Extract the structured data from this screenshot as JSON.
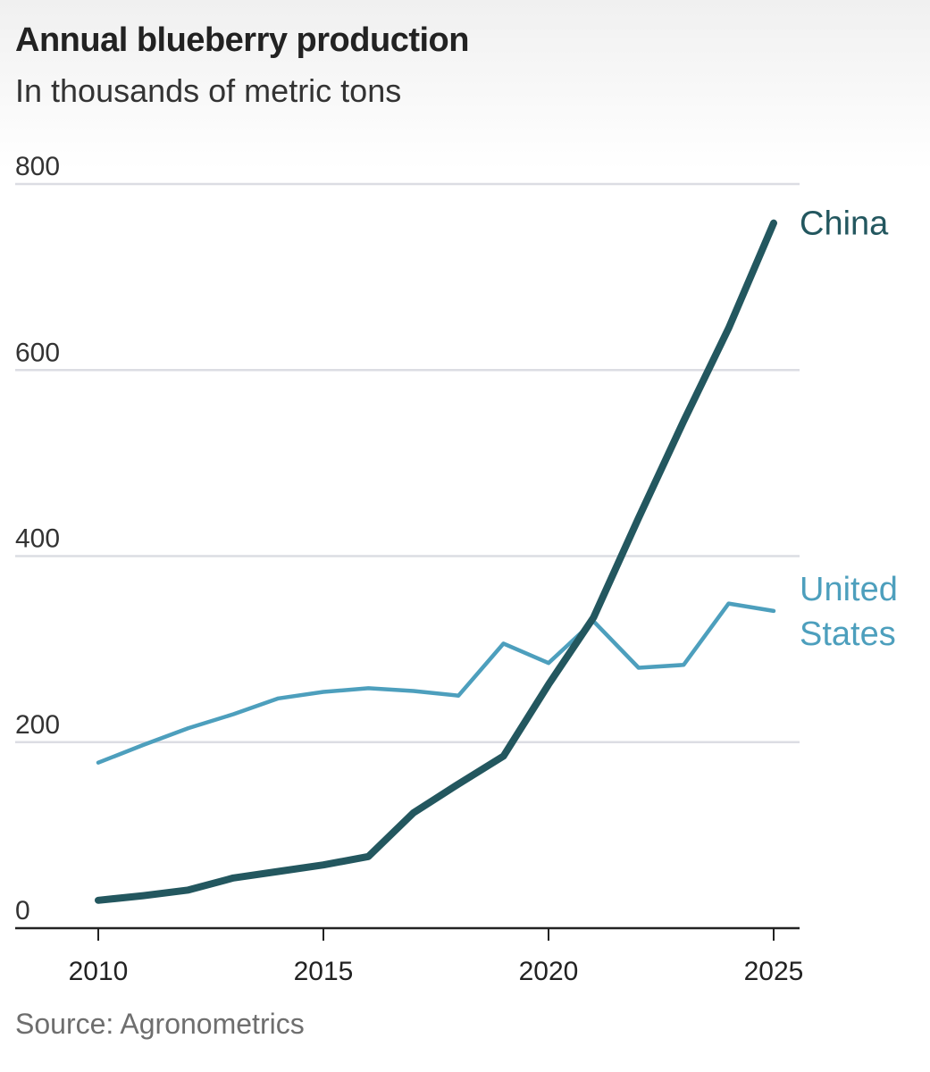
{
  "title": "Annual blueberry production",
  "subtitle": "In thousands of metric tons",
  "source": "Source: Agronometrics",
  "colors": {
    "china": "#23575f",
    "united_states": "#4d9fbd",
    "grid": "#dcdde3",
    "axis": "#222222"
  },
  "chart_data": {
    "type": "line",
    "title": "Annual blueberry production",
    "subtitle": "In thousands of metric tons",
    "xlabel": "",
    "ylabel": "",
    "x": [
      2010,
      2011,
      2012,
      2013,
      2014,
      2015,
      2016,
      2017,
      2018,
      2019,
      2020,
      2021,
      2022,
      2023,
      2024,
      2025
    ],
    "xlim": [
      2008.2,
      2025.6
    ],
    "ylim": [
      0,
      800
    ],
    "y_ticks": [
      "0",
      "200",
      "400",
      "600",
      "800"
    ],
    "x_ticks": [
      "2010",
      "2015",
      "2020",
      "2025"
    ],
    "grid": true,
    "legend": "direct labels at right end of lines",
    "series": [
      {
        "name": "China",
        "label_lines": [
          "China"
        ],
        "values": [
          30,
          35,
          41,
          54,
          61,
          68,
          77,
          124,
          155,
          185,
          262,
          334,
          441,
          545,
          645,
          758
        ]
      },
      {
        "name": "United States",
        "label_lines": [
          "United",
          "States"
        ],
        "values": [
          178,
          197,
          215,
          230,
          247,
          254,
          258,
          255,
          250,
          306,
          285,
          330,
          280,
          283,
          349,
          341
        ]
      }
    ]
  }
}
